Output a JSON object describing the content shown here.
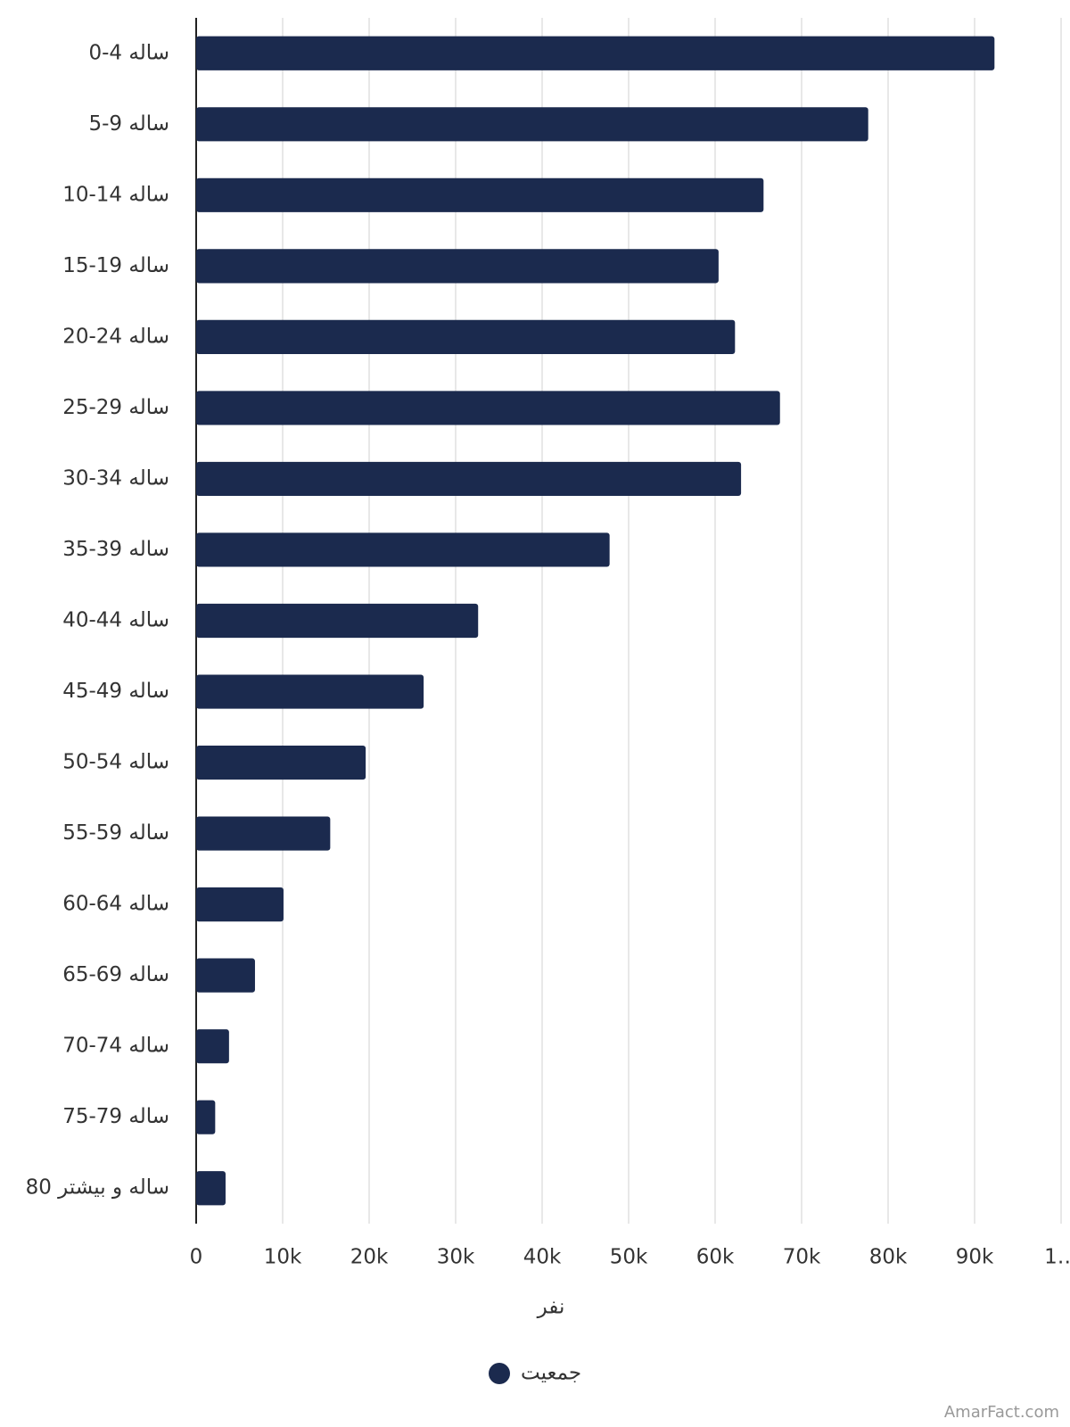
{
  "chart_data": {
    "type": "bar",
    "orientation": "horizontal",
    "categories": [
      "0-4 ساله",
      "5-9 ساله",
      "10-14 ساله",
      "15-19 ساله",
      "20-24 ساله",
      "25-29 ساله",
      "30-34 ساله",
      "35-39 ساله",
      "40-44 ساله",
      "45-49 ساله",
      "50-54 ساله",
      "55-59 ساله",
      "60-64 ساله",
      "65-69 ساله",
      "70-74 ساله",
      "75-79 ساله",
      "80 ساله و بیشتر"
    ],
    "series": [
      {
        "name": "جمعیت",
        "color": "#1b2a4e",
        "values": [
          92300,
          77700,
          65600,
          60400,
          62300,
          67500,
          63000,
          47800,
          32600,
          26300,
          19600,
          15500,
          10100,
          6800,
          3800,
          2200,
          3400
        ]
      }
    ],
    "xlabel": "نفر",
    "xlim": [
      0,
      100000
    ],
    "xticks": [
      0,
      {
        "value": 10000,
        "label": "10k"
      },
      {
        "value": 20000,
        "label": "20k"
      },
      {
        "value": 30000,
        "label": "30k"
      },
      {
        "value": 40000,
        "label": "40k"
      },
      {
        "value": 50000,
        "label": "50k"
      },
      {
        "value": 60000,
        "label": "60k"
      },
      {
        "value": 70000,
        "label": "70k"
      },
      {
        "value": 80000,
        "label": "80k"
      },
      {
        "value": 90000,
        "label": "90k"
      },
      {
        "value": 100000,
        "label": "1…"
      }
    ],
    "grid": true,
    "legend": "bottom",
    "watermark": "AmarFact.com"
  }
}
